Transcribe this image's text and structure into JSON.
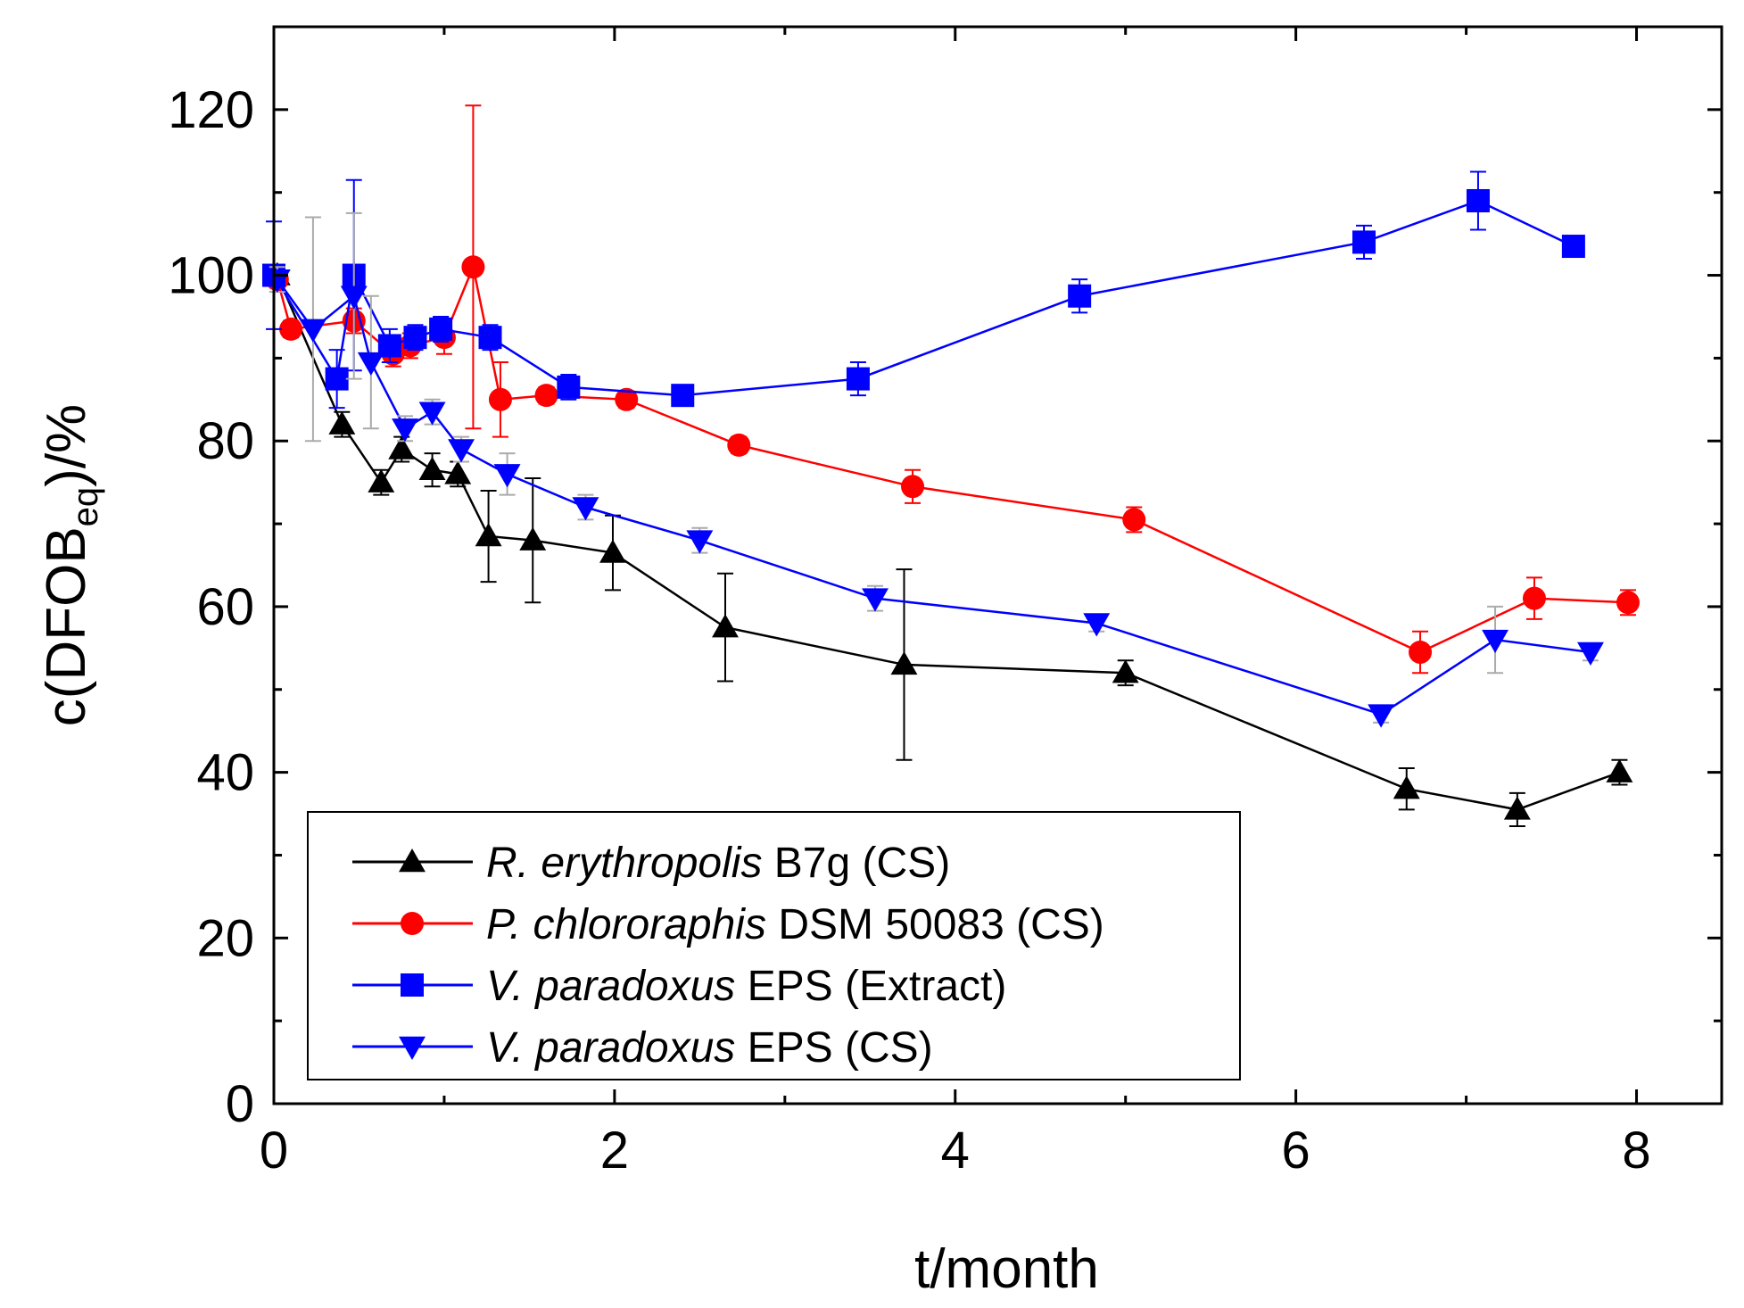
{
  "chart_data": {
    "type": "line",
    "title": "",
    "xlabel": "t/month",
    "ylabel": {
      "prefix": "c(DFOB",
      "subscript": "eq",
      "suffix": ")/%"
    },
    "xlim": [
      0,
      8.5
    ],
    "ylim": [
      0,
      130
    ],
    "x_ticks": [
      0,
      2,
      4,
      6,
      8
    ],
    "y_ticks": [
      0,
      20,
      40,
      60,
      80,
      100,
      120
    ],
    "x_tick_labels": [
      "0",
      "2",
      "4",
      "6",
      "8"
    ],
    "y_tick_labels": [
      "0",
      "20",
      "40",
      "60",
      "80",
      "100",
      "120"
    ],
    "grid": false,
    "legend_position": "bottom-left",
    "series": [
      {
        "name": "R. erythropolis B7g (CS)",
        "name_italic": "R. erythropolis",
        "name_rest": "B7g (CS)",
        "color": "#000000",
        "error_color": "#000000",
        "marker": "triangle-up",
        "x": [
          0.02,
          0.4,
          0.63,
          0.75,
          0.93,
          1.08,
          1.26,
          1.52,
          1.99,
          2.65,
          3.7,
          5.0,
          6.65,
          7.3,
          7.9
        ],
        "y": [
          100,
          82,
          75,
          79,
          76.5,
          76,
          68.5,
          68,
          66.5,
          57.5,
          53,
          52,
          38,
          35.5,
          40
        ],
        "err": [
          1,
          1.5,
          1.5,
          1.5,
          2,
          1.5,
          5.5,
          7.5,
          4.5,
          6.5,
          11.5,
          1.5,
          2.5,
          2,
          1.5
        ]
      },
      {
        "name": "P. chlororaphis DSM 50083 (CS)",
        "name_italic": "P. chlororaphis",
        "name_rest": "DSM 50083 (CS)",
        "color": "#ff0000",
        "error_color": "#ff0000",
        "marker": "circle",
        "x": [
          0.02,
          0.1,
          0.47,
          0.7,
          0.8,
          1.0,
          1.17,
          1.33,
          1.6,
          2.07,
          2.73,
          3.75,
          5.05,
          6.73,
          7.4,
          7.95
        ],
        "y": [
          99.5,
          93.5,
          94.5,
          90.5,
          91.5,
          92.5,
          101,
          85,
          85.5,
          85,
          79.5,
          74.5,
          70.5,
          54.5,
          61,
          60.5
        ],
        "err": [
          1,
          1,
          1.5,
          1.5,
          1.5,
          2,
          19.5,
          4.5,
          1,
          1,
          1,
          2,
          1.5,
          2.5,
          2.5,
          1.5
        ]
      },
      {
        "name": "V. paradoxus EPS (Extract)",
        "name_italic": "V. paradoxus",
        "name_rest": "EPS (Extract)",
        "color": "#0000ff",
        "error_color": "#0000ff",
        "marker": "square",
        "x": [
          0.0,
          0.37,
          0.47,
          0.68,
          0.83,
          0.98,
          1.27,
          1.73,
          2.4,
          3.43,
          4.73,
          6.4,
          7.07,
          7.63
        ],
        "y": [
          100,
          87.5,
          100,
          91.5,
          92.5,
          93.5,
          92.5,
          86.5,
          85.5,
          87.5,
          97.5,
          104,
          109,
          103.5
        ],
        "err": [
          6.5,
          3.5,
          11.5,
          2,
          1.5,
          1.5,
          1.5,
          1.5,
          1,
          2,
          2,
          2,
          3.5,
          1
        ]
      },
      {
        "name": "V. paradoxus EPS (CS)",
        "name_italic": "V. paradoxus",
        "name_rest": "EPS (CS)",
        "color": "#0000ff",
        "error_color": "#aaaaaa",
        "marker": "triangle-down",
        "x": [
          0.02,
          0.23,
          0.47,
          0.57,
          0.77,
          0.93,
          1.1,
          1.37,
          1.83,
          2.5,
          3.53,
          4.83,
          6.5,
          7.17,
          7.73
        ],
        "y": [
          99.5,
          93.5,
          97.5,
          89.5,
          81.5,
          83.5,
          79,
          76,
          72,
          68,
          61,
          58,
          47,
          56,
          54.5
        ],
        "err": [
          1.5,
          13.5,
          10,
          8,
          1.5,
          1.5,
          1.5,
          2.5,
          1.5,
          1.5,
          1.5,
          1,
          1,
          4,
          1
        ]
      }
    ]
  }
}
